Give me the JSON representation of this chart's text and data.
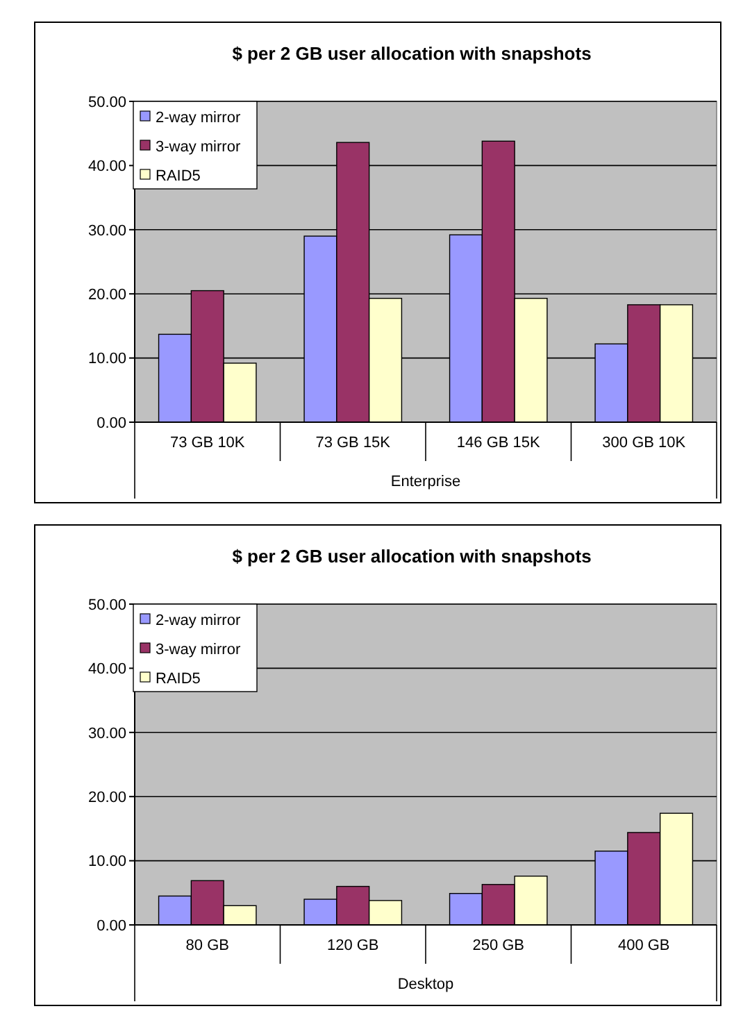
{
  "chart_data": [
    {
      "type": "bar",
      "title": "$ per 2 GB user allocation with snapshots",
      "xlabel": "Enterprise",
      "categories": [
        "73 GB 10K",
        "73 GB 15K",
        "146 GB 15K",
        "300 GB 10K"
      ],
      "series": [
        {
          "name": "2-way mirror",
          "color": "#9999ff",
          "values": [
            13.7,
            29.0,
            29.2,
            12.2
          ]
        },
        {
          "name": "3-way mirror",
          "color": "#993366",
          "values": [
            20.5,
            43.6,
            43.8,
            18.3
          ]
        },
        {
          "name": "RAID5",
          "color": "#ffffcc",
          "values": [
            9.2,
            19.3,
            19.3,
            18.3
          ]
        }
      ],
      "ylim": [
        0,
        50
      ],
      "yticks": [
        {
          "value": 0,
          "label": "0.00"
        },
        {
          "value": 10,
          "label": "10.00"
        },
        {
          "value": 20,
          "label": "20.00"
        },
        {
          "value": 30,
          "label": "30.00"
        },
        {
          "value": 40,
          "label": "40.00"
        },
        {
          "value": 50,
          "label": "50.00"
        }
      ],
      "grid": "y",
      "legend": "top left"
    },
    {
      "type": "bar",
      "title": "$ per 2 GB user allocation with snapshots",
      "xlabel": "Desktop",
      "categories": [
        "80 GB",
        "120 GB",
        "250 GB",
        "400 GB"
      ],
      "series": [
        {
          "name": "2-way mirror",
          "color": "#9999ff",
          "values": [
            4.5,
            4.0,
            4.9,
            11.5
          ]
        },
        {
          "name": "3-way mirror",
          "color": "#993366",
          "values": [
            6.9,
            6.0,
            6.3,
            14.4
          ]
        },
        {
          "name": "RAID5",
          "color": "#ffffcc",
          "values": [
            3.0,
            3.8,
            7.6,
            17.4
          ]
        }
      ],
      "ylim": [
        0,
        50
      ],
      "yticks": [
        {
          "value": 0,
          "label": "0.00"
        },
        {
          "value": 10,
          "label": "10.00"
        },
        {
          "value": 20,
          "label": "20.00"
        },
        {
          "value": 30,
          "label": "30.00"
        },
        {
          "value": 40,
          "label": "40.00"
        },
        {
          "value": 50,
          "label": "50.00"
        }
      ],
      "grid": "y",
      "legend": "top left"
    }
  ]
}
